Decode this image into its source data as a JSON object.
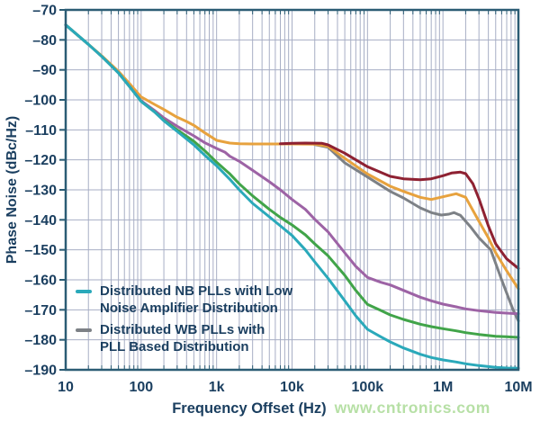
{
  "watermark": "www.cntronics.com",
  "legend": {
    "items": [
      {
        "series": "nb_plls_lna",
        "lines": [
          "Distributed NB PLLs with Low",
          "Noise Amplifier Distribution"
        ]
      },
      {
        "series": "wb_plls_pll",
        "lines": [
          "Distributed WB PLLs with",
          "PLL Based Distribution"
        ]
      }
    ]
  },
  "chart_data": {
    "type": "line",
    "title": "",
    "xlabel": "Frequency Offset (Hz)",
    "ylabel": "Phase Noise (dBc/Hz)",
    "x_scale": "log",
    "xlim": [
      10,
      10000000
    ],
    "ylim": [
      -190,
      -70
    ],
    "y_tick_step": 10,
    "grid": true,
    "legend_position": "inside-bottom-left",
    "x_tick_labels": [
      "10",
      "100",
      "1k",
      "10k",
      "100k",
      "1M",
      "10M"
    ],
    "y_tick_labels": [
      "–70",
      "–80",
      "–90",
      "–100",
      "–110",
      "–120",
      "–130",
      "–140",
      "–150",
      "–160",
      "–170",
      "–180",
      "–190"
    ],
    "colors": {
      "axis": "#2b5c74",
      "grid": "#a7aec5",
      "label_text": "#1b3f60",
      "watermark_green": "#b7e0a6"
    },
    "series": [
      {
        "id": "wb_plls_pll",
        "label": "Distributed WB PLLs with PLL Based Distribution",
        "color": "#7d8186",
        "points": [
          [
            20000,
            -114.9
          ],
          [
            30000,
            -115.8
          ],
          [
            50000,
            -121
          ],
          [
            100000,
            -125.7
          ],
          [
            200000,
            -130.5
          ],
          [
            300000,
            -132.7
          ],
          [
            500000,
            -136
          ],
          [
            700000,
            -137.6
          ],
          [
            950000,
            -138.4
          ],
          [
            1200000,
            -138.1
          ],
          [
            1400000,
            -137.6
          ],
          [
            1700000,
            -138.5
          ],
          [
            2300000,
            -142.2
          ],
          [
            3000000,
            -146
          ],
          [
            4300000,
            -150
          ],
          [
            6000000,
            -160
          ],
          [
            8500000,
            -170
          ],
          [
            10000000,
            -173.7
          ]
        ]
      },
      {
        "id": "orange_distribution",
        "label": "",
        "color": "#e7a23e",
        "points": [
          [
            10,
            -75
          ],
          [
            20,
            -81.5
          ],
          [
            30,
            -85.3
          ],
          [
            50,
            -90.5
          ],
          [
            70,
            -94.5
          ],
          [
            100,
            -99
          ],
          [
            150,
            -101.5
          ],
          [
            200,
            -103.2
          ],
          [
            300,
            -105.8
          ],
          [
            400,
            -107.2
          ],
          [
            500,
            -108.5
          ],
          [
            700,
            -111
          ],
          [
            1000,
            -113.5
          ],
          [
            1500,
            -114.4
          ],
          [
            2000,
            -114.6
          ],
          [
            3000,
            -114.7
          ],
          [
            5000,
            -114.7
          ],
          [
            10000,
            -114.7
          ],
          [
            20000,
            -114.8
          ],
          [
            30000,
            -115.5
          ],
          [
            50000,
            -119.5
          ],
          [
            100000,
            -124.7
          ],
          [
            200000,
            -128.8
          ],
          [
            300000,
            -130.5
          ],
          [
            500000,
            -132.5
          ],
          [
            700000,
            -133.2
          ],
          [
            1000000,
            -132.3
          ],
          [
            1500000,
            -131.3
          ],
          [
            2000000,
            -132.5
          ],
          [
            3000000,
            -140.5
          ],
          [
            4000000,
            -146
          ],
          [
            5000000,
            -151
          ],
          [
            7000000,
            -157
          ],
          [
            10000000,
            -163
          ]
        ]
      },
      {
        "id": "dark_red",
        "label": "",
        "color": "#8e2132",
        "points": [
          [
            7000,
            -114.6
          ],
          [
            10000,
            -114.5
          ],
          [
            15000,
            -114.4
          ],
          [
            25000,
            -114.5
          ],
          [
            30000,
            -115
          ],
          [
            50000,
            -117.8
          ],
          [
            100000,
            -122.3
          ],
          [
            200000,
            -125.5
          ],
          [
            300000,
            -126.3
          ],
          [
            500000,
            -126.6
          ],
          [
            700000,
            -126.3
          ],
          [
            1000000,
            -125.3
          ],
          [
            1300000,
            -124.4
          ],
          [
            1700000,
            -124.1
          ],
          [
            2000000,
            -124.6
          ],
          [
            2500000,
            -128
          ],
          [
            3000000,
            -133
          ],
          [
            4000000,
            -142
          ],
          [
            5000000,
            -148
          ],
          [
            7000000,
            -153
          ],
          [
            10000000,
            -156.2
          ]
        ]
      },
      {
        "id": "purple",
        "label": "",
        "color": "#9d63a5",
        "points": [
          [
            10,
            -75
          ],
          [
            20,
            -81.5
          ],
          [
            30,
            -85.5
          ],
          [
            50,
            -91
          ],
          [
            70,
            -95.5
          ],
          [
            100,
            -100.3
          ],
          [
            150,
            -103.5
          ],
          [
            200,
            -106
          ],
          [
            300,
            -108.8
          ],
          [
            500,
            -112
          ],
          [
            700,
            -114.3
          ],
          [
            1000,
            -116.2
          ],
          [
            1300,
            -117.5
          ],
          [
            1500,
            -118.8
          ],
          [
            2000,
            -120.5
          ],
          [
            3000,
            -123.5
          ],
          [
            5000,
            -127.3
          ],
          [
            7000,
            -130
          ],
          [
            10000,
            -133.2
          ],
          [
            15000,
            -136.5
          ],
          [
            20000,
            -139.8
          ],
          [
            30000,
            -144
          ],
          [
            50000,
            -151
          ],
          [
            70000,
            -155.5
          ],
          [
            100000,
            -159.2
          ],
          [
            150000,
            -160.8
          ],
          [
            200000,
            -161.7
          ],
          [
            300000,
            -163.5
          ],
          [
            500000,
            -165.8
          ],
          [
            700000,
            -167
          ],
          [
            1000000,
            -168.1
          ],
          [
            1500000,
            -169
          ],
          [
            2000000,
            -169.7
          ],
          [
            3000000,
            -170.3
          ],
          [
            5000000,
            -170.9
          ],
          [
            7000000,
            -171.1
          ],
          [
            10000000,
            -171.3
          ]
        ]
      },
      {
        "id": "green",
        "label": "",
        "color": "#41a449",
        "points": [
          [
            10,
            -75
          ],
          [
            20,
            -81.5
          ],
          [
            30,
            -85.5
          ],
          [
            50,
            -91
          ],
          [
            70,
            -95.5
          ],
          [
            100,
            -100.5
          ],
          [
            150,
            -104
          ],
          [
            200,
            -106.8
          ],
          [
            300,
            -110
          ],
          [
            500,
            -113.8
          ],
          [
            700,
            -117
          ],
          [
            1000,
            -120.8
          ],
          [
            1500,
            -124.7
          ],
          [
            2000,
            -128
          ],
          [
            3000,
            -132
          ],
          [
            5000,
            -136.5
          ],
          [
            7000,
            -139.2
          ],
          [
            10000,
            -141.7
          ],
          [
            15000,
            -145
          ],
          [
            20000,
            -148
          ],
          [
            30000,
            -152
          ],
          [
            50000,
            -158.5
          ],
          [
            70000,
            -163.5
          ],
          [
            100000,
            -168.2
          ],
          [
            150000,
            -170.2
          ],
          [
            200000,
            -171.7
          ],
          [
            300000,
            -173.2
          ],
          [
            500000,
            -174.8
          ],
          [
            700000,
            -175.6
          ],
          [
            1000000,
            -176.3
          ],
          [
            1500000,
            -177
          ],
          [
            2000000,
            -177.6
          ],
          [
            3000000,
            -178.2
          ],
          [
            5000000,
            -178.8
          ],
          [
            7000000,
            -179
          ],
          [
            10000000,
            -179.2
          ]
        ]
      },
      {
        "id": "nb_plls_lna",
        "label": "Distributed NB PLLs with Low Noise Amplifier Distribution",
        "color": "#2aa9ba",
        "points": [
          [
            10,
            -75
          ],
          [
            20,
            -81.5
          ],
          [
            30,
            -85.5
          ],
          [
            50,
            -91
          ],
          [
            70,
            -95.5
          ],
          [
            100,
            -100.5
          ],
          [
            150,
            -104
          ],
          [
            200,
            -107
          ],
          [
            300,
            -110.5
          ],
          [
            500,
            -115
          ],
          [
            700,
            -118.5
          ],
          [
            1000,
            -122
          ],
          [
            1500,
            -126.5
          ],
          [
            2000,
            -130
          ],
          [
            3000,
            -134.5
          ],
          [
            5000,
            -139
          ],
          [
            7000,
            -142
          ],
          [
            10000,
            -145.2
          ],
          [
            15000,
            -150
          ],
          [
            20000,
            -154
          ],
          [
            30000,
            -159.5
          ],
          [
            50000,
            -167
          ],
          [
            70000,
            -172
          ],
          [
            100000,
            -176.5
          ],
          [
            150000,
            -179
          ],
          [
            200000,
            -180.7
          ],
          [
            300000,
            -182.7
          ],
          [
            500000,
            -184.8
          ],
          [
            700000,
            -185.9
          ],
          [
            1000000,
            -186.7
          ],
          [
            1500000,
            -187.4
          ],
          [
            2000000,
            -188
          ],
          [
            3000000,
            -188.6
          ],
          [
            5000000,
            -189.2
          ],
          [
            7000000,
            -189.4
          ],
          [
            10000000,
            -189.5
          ]
        ]
      }
    ]
  }
}
